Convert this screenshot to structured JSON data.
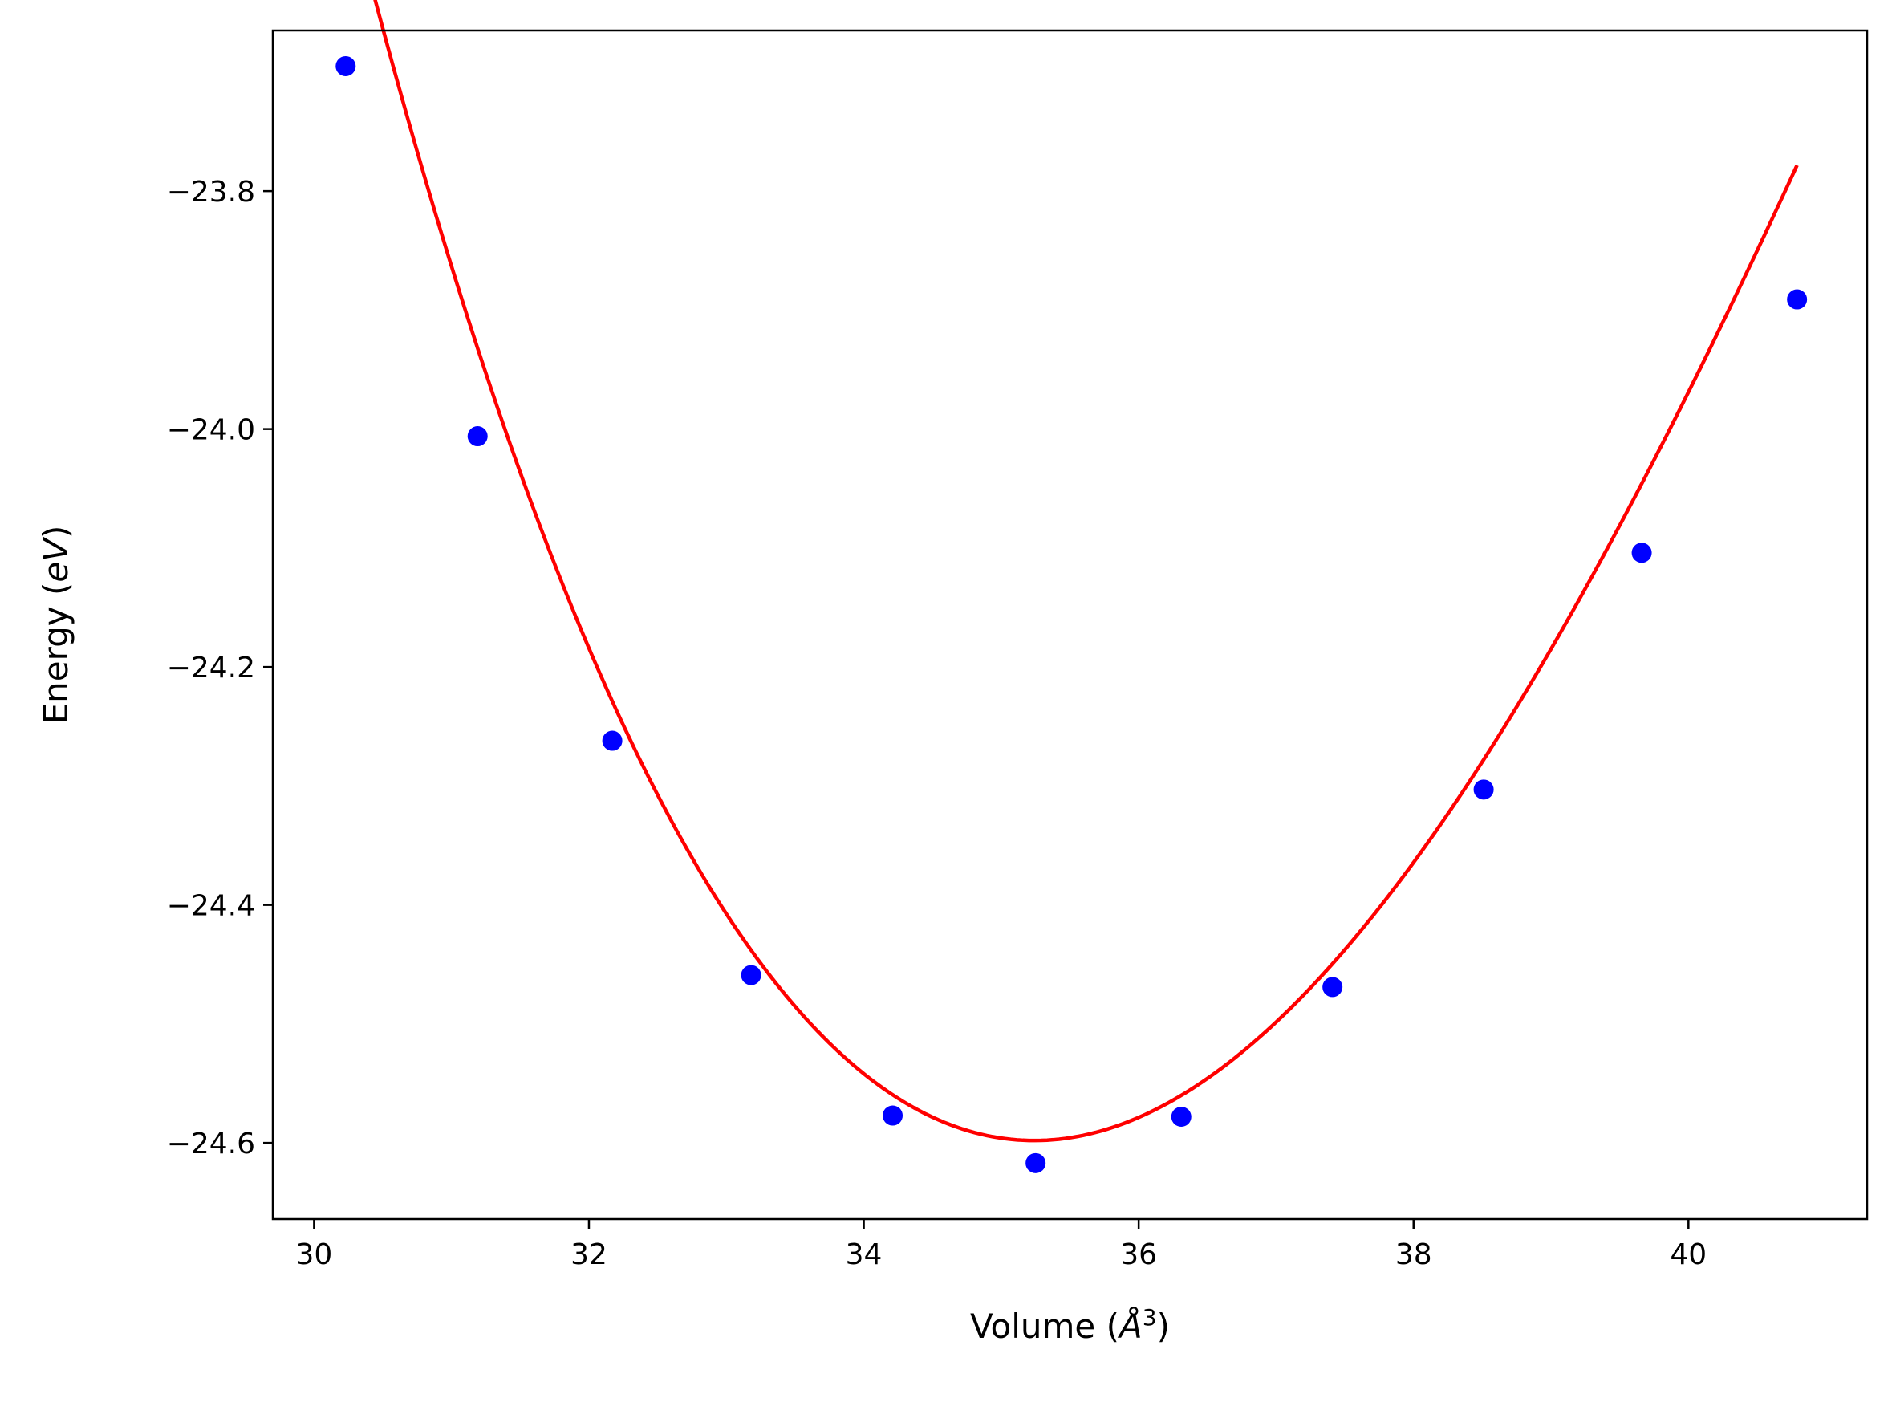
{
  "chart_data": {
    "type": "scatter",
    "title": "",
    "xlabel": "Volume (",
    "xlabel_symbol": "Å",
    "xlabel_exp": "3",
    "xlabel_close": ")",
    "ylabel": "Energy (",
    "ylabel_symbol": "eV",
    "ylabel_close": ")",
    "xlim": [
      29.7,
      41.3
    ],
    "ylim": [
      -24.664,
      -23.665
    ],
    "x_ticks": [
      30,
      32,
      34,
      36,
      38,
      40
    ],
    "x_tick_labels": [
      "30",
      "32",
      "34",
      "36",
      "38",
      "40"
    ],
    "y_ticks": [
      -23.8,
      -24.0,
      -24.2,
      -24.4,
      -24.6
    ],
    "y_tick_labels": [
      "−23.8",
      "−24.0",
      "−24.2",
      "−24.4",
      "−24.6"
    ],
    "grid": false,
    "series": [
      {
        "kind": "points",
        "color": "#0000ff",
        "x": [
          30.23,
          31.19,
          32.17,
          33.18,
          34.21,
          35.25,
          36.31,
          37.41,
          38.51,
          39.66,
          40.79
        ],
        "y": [
          -23.695,
          -24.006,
          -24.262,
          -24.459,
          -24.577,
          -24.617,
          -24.578,
          -24.469,
          -24.303,
          -24.104,
          -23.891
        ]
      },
      {
        "kind": "fit",
        "color": "#ff0000",
        "x_range": [
          30.23,
          40.79
        ],
        "min_x": 35.24,
        "min_y": -24.598,
        "curvature": 0.0347
      }
    ]
  }
}
